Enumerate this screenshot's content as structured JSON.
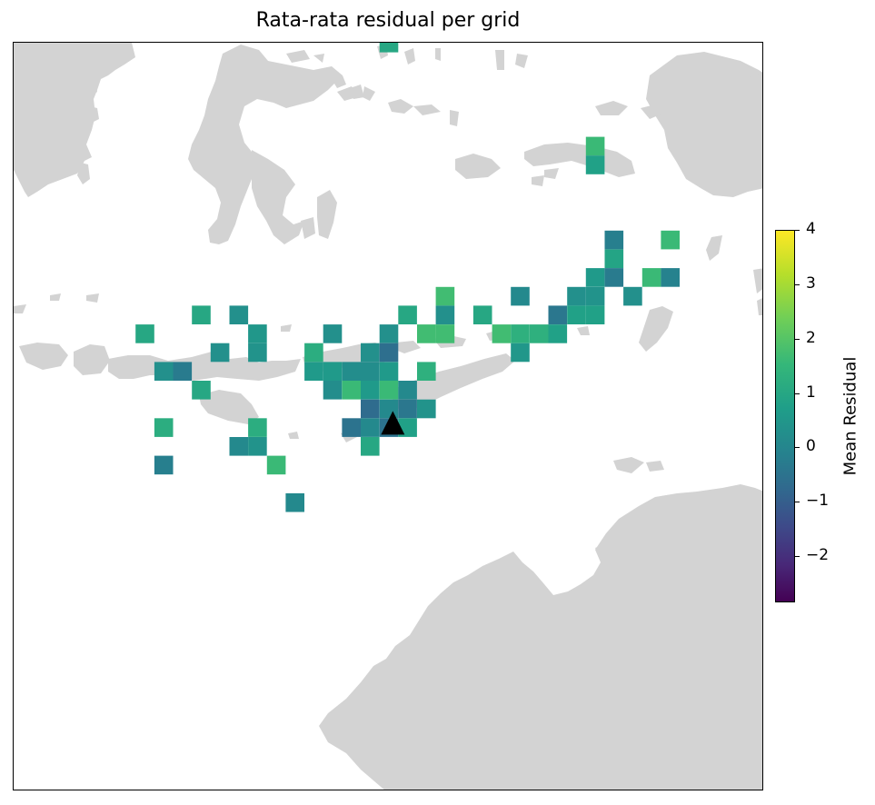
{
  "title": "Rata-rata residual per grid",
  "colorbar": {
    "label": "Mean Residual",
    "colormap": "viridis",
    "range": [
      -2.85,
      4
    ],
    "ticks": [
      4,
      3,
      2,
      1,
      0,
      -1,
      -2
    ],
    "tick_labels": [
      "4",
      "3",
      "2",
      "1",
      "0",
      "−1",
      "−2"
    ]
  },
  "colors": {
    "land": "#d3d3d3",
    "ocean": "#ffffff",
    "marker": "#000000"
  },
  "marker": {
    "icon": "black-triangle-marker",
    "col": 20,
    "row": 20.5
  },
  "chart_data": {
    "type": "heatmap",
    "title": "Rata-rata residual per grid",
    "colorbar_label": "Mean Residual",
    "value_range": [
      -2.85,
      4
    ],
    "cell_grid": "cells indexed by column (west to east) and row (north to south)",
    "cells": [
      {
        "col": 19.5,
        "row": 0,
        "value": 1.0
      },
      {
        "col": 30.5,
        "row": 5.5,
        "value": 1.6
      },
      {
        "col": 30.5,
        "row": 6.5,
        "value": 0.8
      },
      {
        "col": 31.5,
        "row": 10.5,
        "value": -0.2
      },
      {
        "col": 34.5,
        "row": 10.5,
        "value": 1.6
      },
      {
        "col": 31.5,
        "row": 11.5,
        "value": 0.9
      },
      {
        "col": 30.5,
        "row": 12.5,
        "value": 0.6
      },
      {
        "col": 31.5,
        "row": 12.5,
        "value": -0.3
      },
      {
        "col": 33.5,
        "row": 12.5,
        "value": 1.6
      },
      {
        "col": 34.5,
        "row": 12.5,
        "value": -0.1
      },
      {
        "col": 22.5,
        "row": 13.5,
        "value": 1.7
      },
      {
        "col": 26.5,
        "row": 13.5,
        "value": 0.1
      },
      {
        "col": 29.5,
        "row": 13.5,
        "value": 0.3
      },
      {
        "col": 30.5,
        "row": 13.5,
        "value": 0.4
      },
      {
        "col": 32.5,
        "row": 13.5,
        "value": 0.3
      },
      {
        "col": 9.5,
        "row": 14.5,
        "value": 1.0
      },
      {
        "col": 11.5,
        "row": 14.5,
        "value": 0.3
      },
      {
        "col": 20.5,
        "row": 14.5,
        "value": 1.0
      },
      {
        "col": 22.5,
        "row": 14.5,
        "value": 0.3
      },
      {
        "col": 24.5,
        "row": 14.5,
        "value": 1.0
      },
      {
        "col": 28.5,
        "row": 14.5,
        "value": -0.4
      },
      {
        "col": 29.5,
        "row": 14.5,
        "value": 0.8
      },
      {
        "col": 30.5,
        "row": 14.5,
        "value": 0.8
      },
      {
        "col": 6.5,
        "row": 15.5,
        "value": 1.0
      },
      {
        "col": 12.5,
        "row": 15.5,
        "value": 0.5
      },
      {
        "col": 16.5,
        "row": 15.5,
        "value": 0.3
      },
      {
        "col": 19.5,
        "row": 15.5,
        "value": 0.3
      },
      {
        "col": 21.5,
        "row": 15.5,
        "value": 1.7
      },
      {
        "col": 22.5,
        "row": 15.5,
        "value": 1.7
      },
      {
        "col": 25.5,
        "row": 15.5,
        "value": 1.7
      },
      {
        "col": 26.5,
        "row": 15.5,
        "value": 1.3
      },
      {
        "col": 27.5,
        "row": 15.5,
        "value": 1.3
      },
      {
        "col": 28.5,
        "row": 15.5,
        "value": 0.8
      },
      {
        "col": 10.5,
        "row": 16.5,
        "value": 0.3
      },
      {
        "col": 12.5,
        "row": 16.5,
        "value": 0.4
      },
      {
        "col": 15.5,
        "row": 16.5,
        "value": 1.2
      },
      {
        "col": 18.5,
        "row": 16.5,
        "value": 0.3
      },
      {
        "col": 19.5,
        "row": 16.5,
        "value": -0.6
      },
      {
        "col": 26.5,
        "row": 16.5,
        "value": 0.5
      },
      {
        "col": 7.5,
        "row": 17.5,
        "value": 0.3
      },
      {
        "col": 8.5,
        "row": 17.5,
        "value": -0.3
      },
      {
        "col": 15.5,
        "row": 17.5,
        "value": 0.6
      },
      {
        "col": 16.5,
        "row": 17.5,
        "value": 0.6
      },
      {
        "col": 17.5,
        "row": 17.5,
        "value": 0.2
      },
      {
        "col": 18.5,
        "row": 17.5,
        "value": 0.2
      },
      {
        "col": 19.5,
        "row": 17.5,
        "value": 0.6
      },
      {
        "col": 21.5,
        "row": 17.5,
        "value": 1.3
      },
      {
        "col": 9.5,
        "row": 18.5,
        "value": 1.0
      },
      {
        "col": 16.5,
        "row": 18.5,
        "value": 0.2
      },
      {
        "col": 17.5,
        "row": 18.5,
        "value": 1.6
      },
      {
        "col": 18.5,
        "row": 18.5,
        "value": 0.6
      },
      {
        "col": 19.5,
        "row": 18.5,
        "value": 1.6
      },
      {
        "col": 20.5,
        "row": 18.5,
        "value": 0.1
      },
      {
        "col": 18.5,
        "row": 19.5,
        "value": -0.7
      },
      {
        "col": 19.5,
        "row": 19.5,
        "value": 0.1
      },
      {
        "col": 20.5,
        "row": 19.5,
        "value": -0.4
      },
      {
        "col": 21.5,
        "row": 19.5,
        "value": 0.4
      },
      {
        "col": 7.5,
        "row": 20.5,
        "value": 1.2
      },
      {
        "col": 12.5,
        "row": 20.5,
        "value": 1.2
      },
      {
        "col": 17.5,
        "row": 20.5,
        "value": -0.5
      },
      {
        "col": 18.5,
        "row": 20.5,
        "value": 0.1
      },
      {
        "col": 19.5,
        "row": 20.5,
        "value": -0.5
      },
      {
        "col": 20.5,
        "row": 20.5,
        "value": 0.8
      },
      {
        "col": 11.5,
        "row": 21.5,
        "value": 0.1
      },
      {
        "col": 12.5,
        "row": 21.5,
        "value": 0.4
      },
      {
        "col": 18.5,
        "row": 21.5,
        "value": 1.0
      },
      {
        "col": 7.5,
        "row": 22.5,
        "value": -0.2
      },
      {
        "col": 13.5,
        "row": 22.5,
        "value": 1.6
      },
      {
        "col": 14.5,
        "row": 24.5,
        "value": 0.1
      }
    ]
  }
}
